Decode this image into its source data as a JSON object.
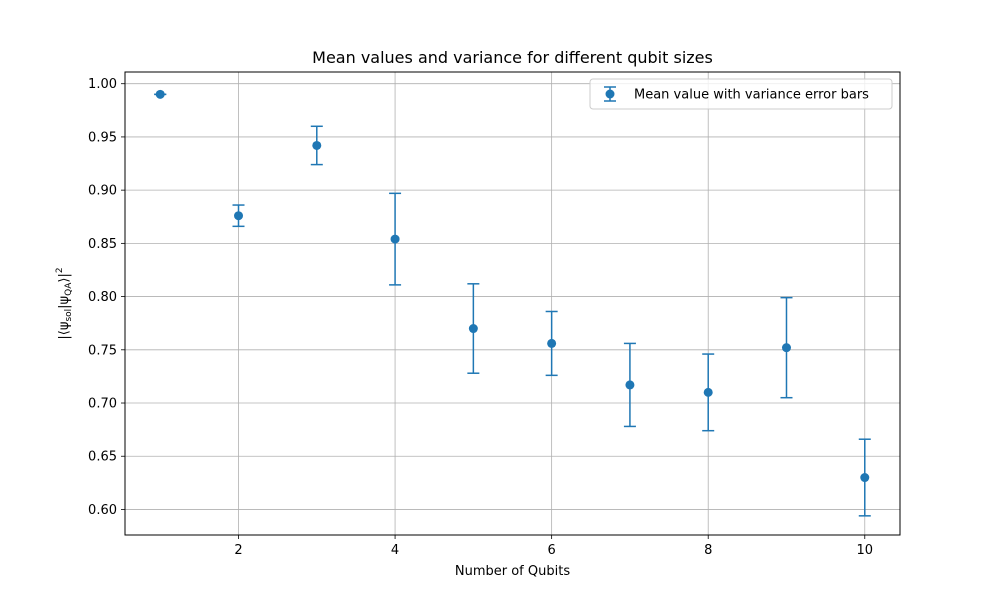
{
  "chart_data": {
    "type": "scatter",
    "title": "Mean values and variance for different qubit sizes",
    "xlabel": "Number of Qubits",
    "ylabel": "|⟨ψ_sol|ψ_QA⟩|²",
    "ylabel_parts": {
      "prefix": "|⟨ψ",
      "sub1": "sol",
      "mid": "|ψ",
      "sub2": "QA",
      "close": "⟩|",
      "sup": "2"
    },
    "xlim": [
      0.55,
      10.45
    ],
    "ylim": [
      0.576,
      1.011
    ],
    "grid": true,
    "legend_position": "top-right",
    "color": "#1f77b4",
    "x_ticks": [
      2,
      4,
      6,
      8,
      10
    ],
    "x_tick_labels": [
      "2",
      "4",
      "6",
      "8",
      "10"
    ],
    "y_ticks": [
      0.6,
      0.65,
      0.7,
      0.75,
      0.8,
      0.85,
      0.9,
      0.95,
      1.0
    ],
    "y_tick_labels": [
      "0.60",
      "0.65",
      "0.70",
      "0.75",
      "0.80",
      "0.85",
      "0.90",
      "0.95",
      "1.00"
    ],
    "series": [
      {
        "name": "Mean value with variance error bars",
        "x": [
          1,
          2,
          3,
          4,
          5,
          6,
          7,
          8,
          9,
          10
        ],
        "y": [
          0.99,
          0.876,
          0.942,
          0.854,
          0.77,
          0.756,
          0.717,
          0.71,
          0.752,
          0.63
        ],
        "yerr": [
          0.0,
          0.01,
          0.018,
          0.043,
          0.042,
          0.03,
          0.039,
          0.036,
          0.047,
          0.036
        ]
      }
    ]
  }
}
